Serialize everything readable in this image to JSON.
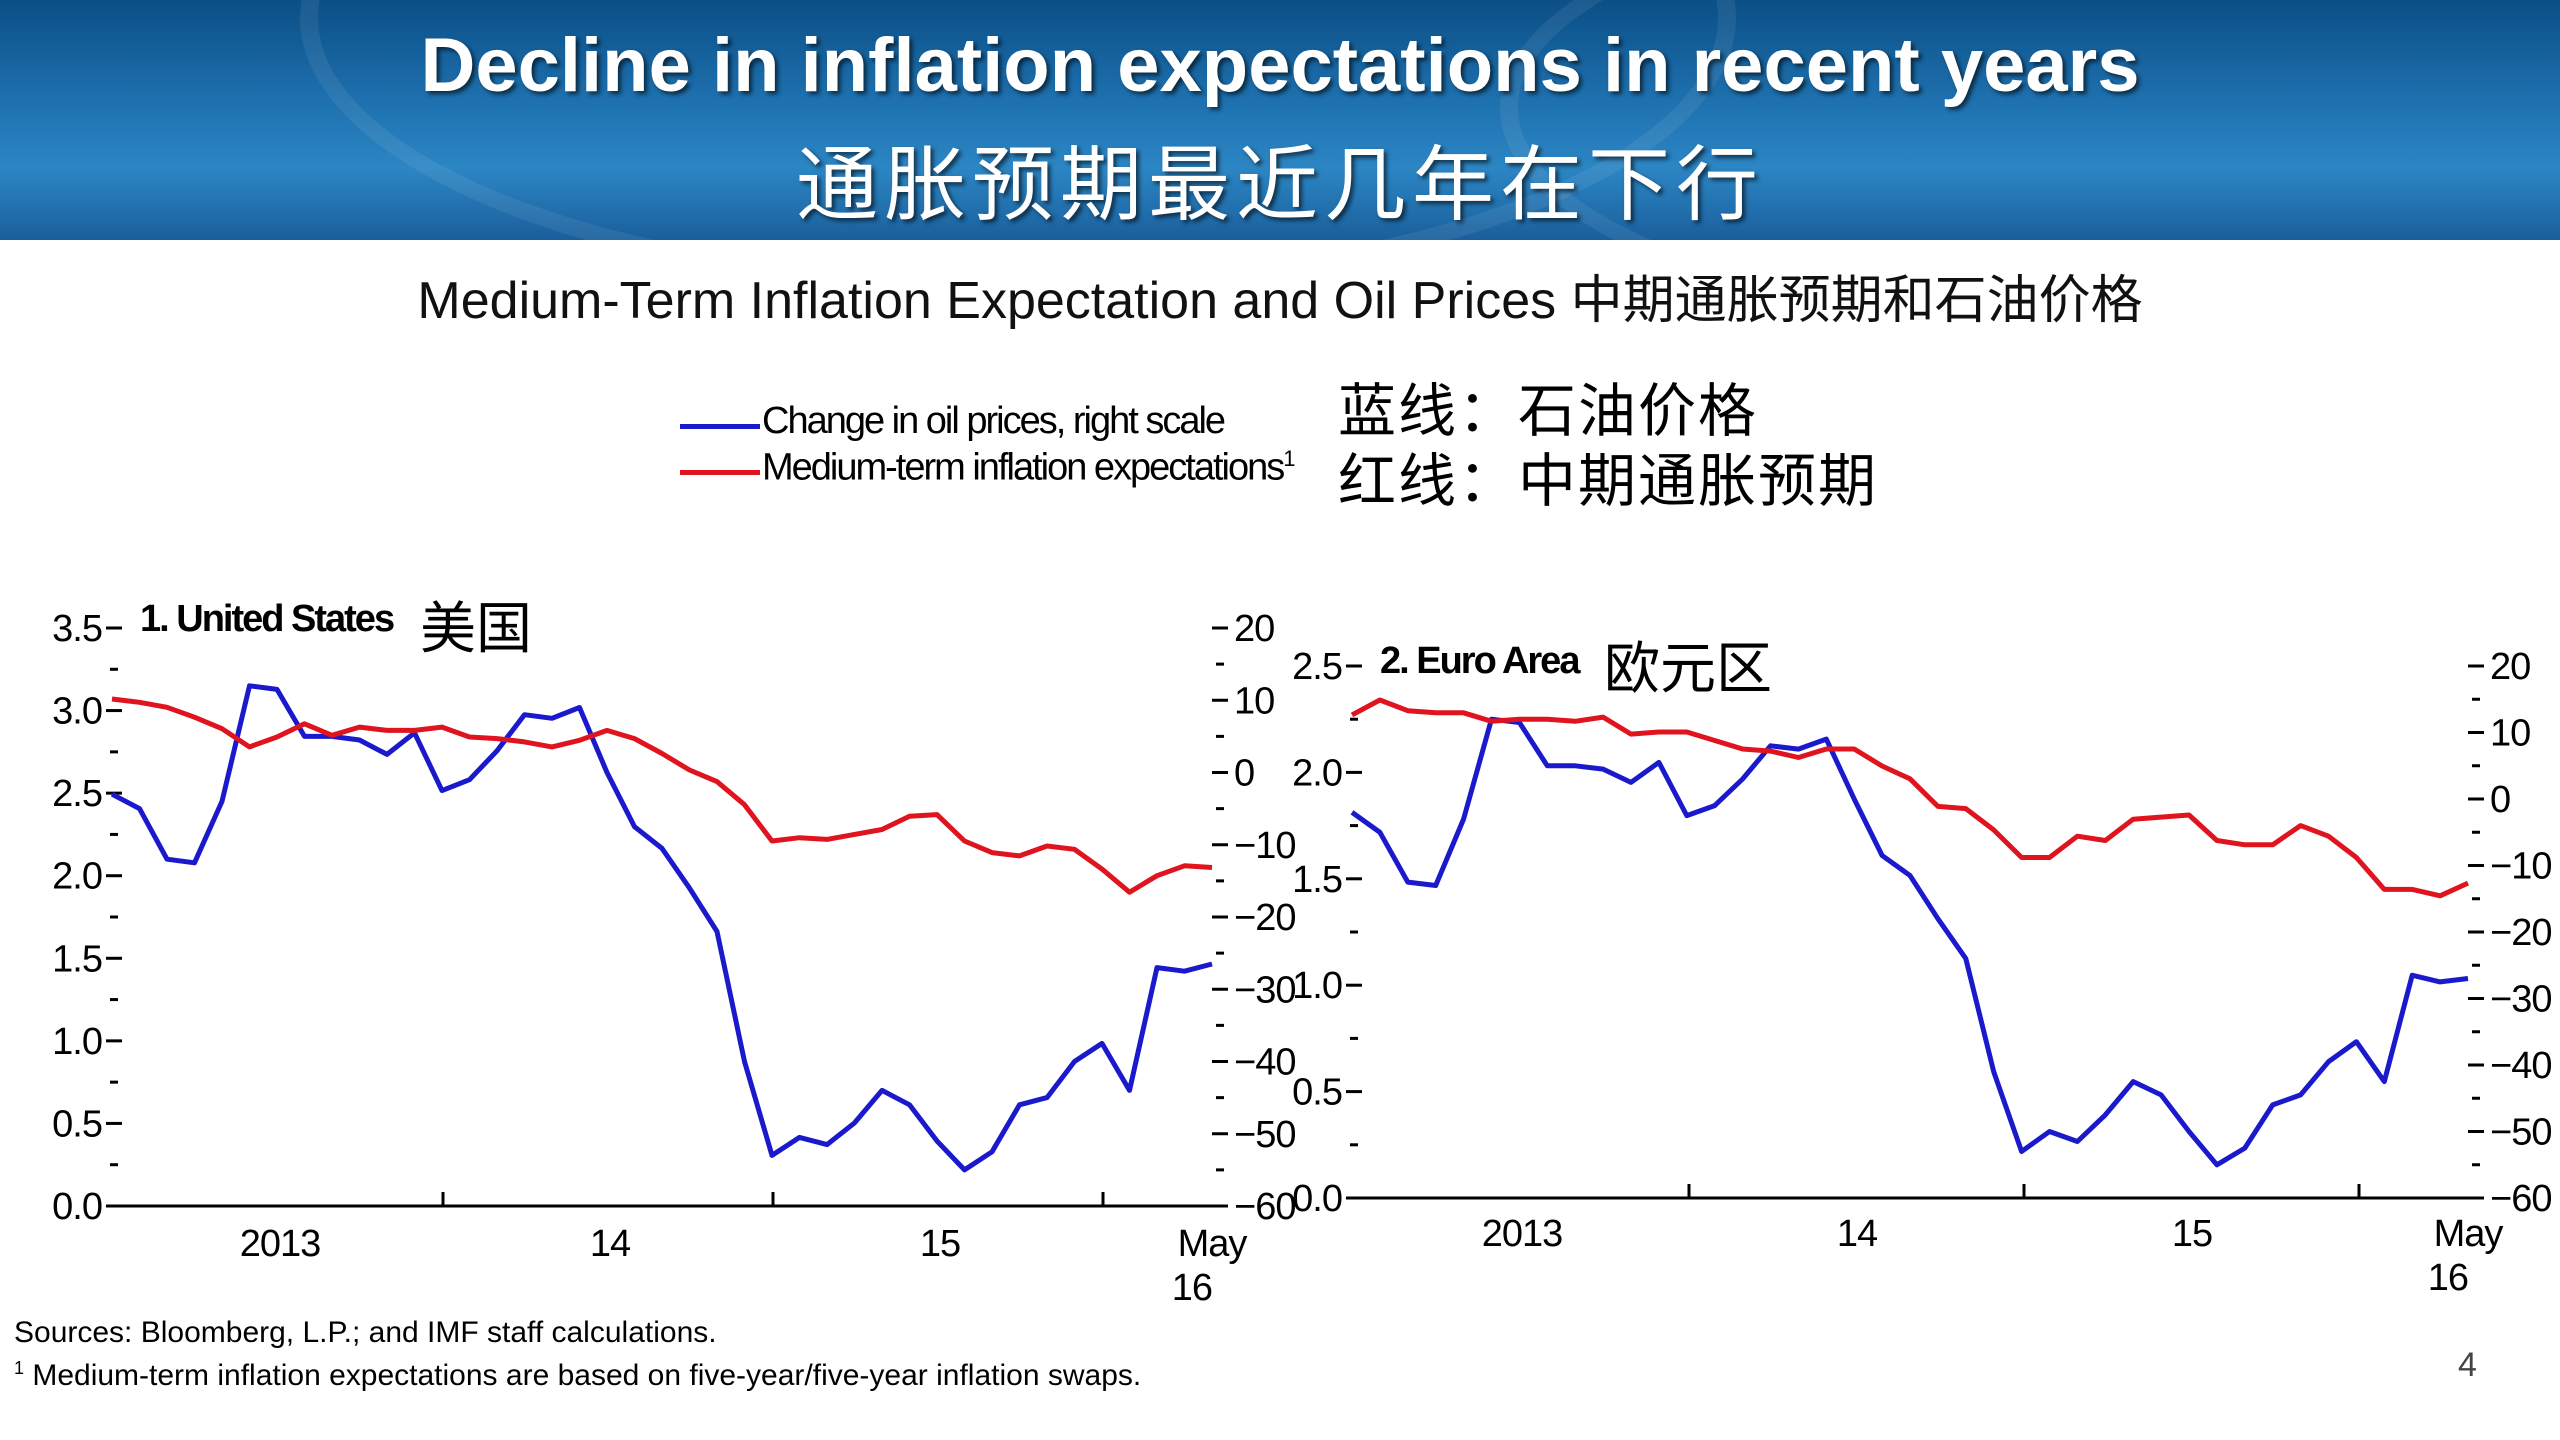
{
  "header": {
    "title_en": "Decline in inflation expectations in recent years",
    "title_zh": "通胀预期最近几年在下行"
  },
  "subtitle": "Medium-Term Inflation Expectation and Oil Prices 中期通胀预期和石油价格",
  "legend": {
    "oil": "Change in oil prices, right scale",
    "inflation": "Medium-term inflation expectations",
    "inflation_sup": "1"
  },
  "notes": {
    "blue_line": "蓝线：石油价格",
    "red_line": "红线：中期通胀预期"
  },
  "colors": {
    "oil": "#1a1acc",
    "inflation": "#e0141e"
  },
  "sources": "Sources: Bloomberg, L.P.; and IMF staff calculations.",
  "footnote_sup": "1",
  "footnote": " Medium-term inflation expectations are based on five-year/five-year inflation swaps.",
  "page_number": "4",
  "chart_data": [
    {
      "type": "line",
      "title": "1. United States",
      "title_zh": "美国",
      "x_labels": [
        "2013",
        "14",
        "15",
        "May",
        "16"
      ],
      "left_axis": {
        "ylim": [
          0,
          3.5
        ],
        "ticks": [
          "0.0",
          "0.5",
          "1.0",
          "1.5",
          "2.0",
          "2.5",
          "3.0",
          "3.5"
        ]
      },
      "right_axis": {
        "ylim": [
          -60,
          20
        ],
        "ticks": [
          "−60",
          "−50",
          "−40",
          "−30",
          "−20",
          "−10",
          "0",
          "10",
          "20"
        ]
      },
      "series": [
        {
          "key": "oil",
          "axis": "right",
          "values": [
            -3,
            -5,
            -12,
            -12.5,
            -4,
            12,
            11.5,
            5,
            5,
            4.5,
            2.5,
            5.5,
            -2.5,
            -1,
            3,
            8,
            7.5,
            9,
            0,
            -7.5,
            -10.5,
            -16,
            -22,
            -40,
            -53,
            -50.5,
            -51.5,
            -48.5,
            -44,
            -46,
            -51,
            -55,
            -52.5,
            -46,
            -45,
            -40,
            -37.5,
            -44,
            -27,
            -27.5,
            -26.5
          ]
        },
        {
          "key": "inflation",
          "axis": "left",
          "values": [
            3.07,
            3.05,
            3.02,
            2.96,
            2.89,
            2.78,
            2.84,
            2.92,
            2.85,
            2.9,
            2.88,
            2.88,
            2.9,
            2.84,
            2.83,
            2.81,
            2.78,
            2.82,
            2.88,
            2.83,
            2.74,
            2.64,
            2.57,
            2.43,
            2.21,
            2.23,
            2.22,
            2.25,
            2.28,
            2.36,
            2.37,
            2.21,
            2.14,
            2.12,
            2.18,
            2.16,
            2.04,
            1.9,
            2.0,
            2.06,
            2.05
          ]
        }
      ]
    },
    {
      "type": "line",
      "title": "2. Euro Area",
      "title_zh": "欧元区",
      "x_labels": [
        "2013",
        "14",
        "15",
        "May",
        "16"
      ],
      "left_axis": {
        "ylim": [
          0,
          2.5
        ],
        "ticks": [
          "0.0",
          "0.5",
          "1.0",
          "1.5",
          "2.0",
          "2.5"
        ]
      },
      "right_axis": {
        "ylim": [
          -60,
          20
        ],
        "ticks": [
          "−60",
          "−50",
          "−40",
          "−30",
          "−20",
          "−10",
          "0",
          "10",
          "20"
        ]
      },
      "series": [
        {
          "key": "oil",
          "axis": "right",
          "values": [
            -2,
            -5,
            -12.5,
            -13,
            -3,
            12,
            11.5,
            5,
            5,
            4.5,
            2.5,
            5.5,
            -2.5,
            -1,
            3,
            8,
            7.5,
            9,
            0,
            -8.5,
            -11.5,
            -18,
            -24,
            -41,
            -53,
            -50,
            -51.5,
            -47.5,
            -42.5,
            -44.5,
            -50,
            -55,
            -52.5,
            -46,
            -44.5,
            -39.5,
            -36.5,
            -42.5,
            -26.5,
            -27.5,
            -27
          ]
        },
        {
          "key": "inflation",
          "axis": "left",
          "values": [
            2.27,
            2.34,
            2.29,
            2.28,
            2.28,
            2.24,
            2.25,
            2.25,
            2.24,
            2.26,
            2.18,
            2.19,
            2.19,
            2.15,
            2.11,
            2.1,
            2.07,
            2.11,
            2.11,
            2.03,
            1.97,
            1.84,
            1.83,
            1.73,
            1.6,
            1.6,
            1.7,
            1.68,
            1.78,
            1.79,
            1.8,
            1.68,
            1.66,
            1.66,
            1.75,
            1.7,
            1.6,
            1.45,
            1.45,
            1.42,
            1.48
          ]
        }
      ]
    }
  ]
}
